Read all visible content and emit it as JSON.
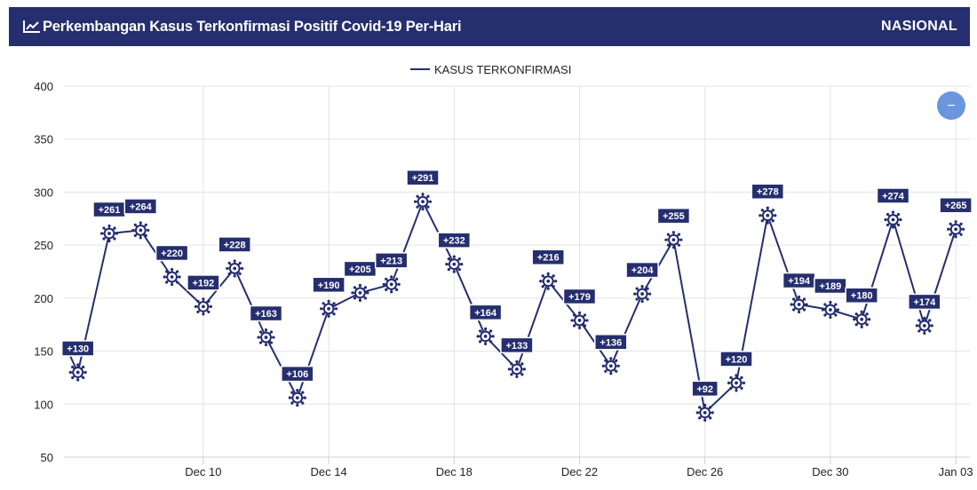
{
  "header": {
    "title": "Perkembangan Kasus Terkonfirmasi Positif Covid-19 Per-Hari",
    "region": "NASIONAL",
    "chart_icon": "line-chart-icon"
  },
  "controls": {
    "collapse_icon": "minus-icon",
    "collapse_glyph": "−"
  },
  "colors": {
    "header_bg": "#252e6e",
    "series": "#252e6e",
    "label_bg": "#252e6e",
    "collapse_button": "#6a96dd"
  },
  "chart_data": {
    "type": "line",
    "title": "Perkembangan Kasus Terkonfirmasi Positif Covid-19 Per-Hari",
    "legend": {
      "position": "top-center",
      "entries": [
        "KASUS TERKONFIRMASI"
      ]
    },
    "xlabel": "",
    "ylabel": "",
    "ylim": [
      50,
      400
    ],
    "yticks": [
      50,
      100,
      150,
      200,
      250,
      300,
      350,
      400
    ],
    "xticks": [
      "Dec 10",
      "Dec 14",
      "Dec 18",
      "Dec 22",
      "Dec 26",
      "Dec 30",
      "Jan 03"
    ],
    "grid": true,
    "x": [
      "Dec 06",
      "Dec 07",
      "Dec 08",
      "Dec 09",
      "Dec 10",
      "Dec 11",
      "Dec 12",
      "Dec 13",
      "Dec 14",
      "Dec 15",
      "Dec 16",
      "Dec 17",
      "Dec 18",
      "Dec 19",
      "Dec 20",
      "Dec 21",
      "Dec 22",
      "Dec 23",
      "Dec 24",
      "Dec 25",
      "Dec 26",
      "Dec 27",
      "Dec 28",
      "Dec 29",
      "Dec 30",
      "Dec 31",
      "Jan 01",
      "Jan 02",
      "Jan 03"
    ],
    "series": [
      {
        "name": "KASUS TERKONFIRMASI",
        "values": [
          130,
          261,
          264,
          220,
          192,
          228,
          163,
          106,
          190,
          205,
          213,
          291,
          232,
          164,
          133,
          216,
          179,
          136,
          204,
          255,
          92,
          120,
          278,
          194,
          189,
          180,
          274,
          174,
          265
        ],
        "labels": [
          "+130",
          "+261",
          "+264",
          "+220",
          "+192",
          "+228",
          "+163",
          "+106",
          "+190",
          "+205",
          "+213",
          "+291",
          "+232",
          "+164",
          "+133",
          "+216",
          "+179",
          "+136",
          "+204",
          "+255",
          "+92",
          "+120",
          "+278",
          "+194",
          "+189",
          "+180",
          "+274",
          "+174",
          "+265"
        ]
      }
    ]
  }
}
